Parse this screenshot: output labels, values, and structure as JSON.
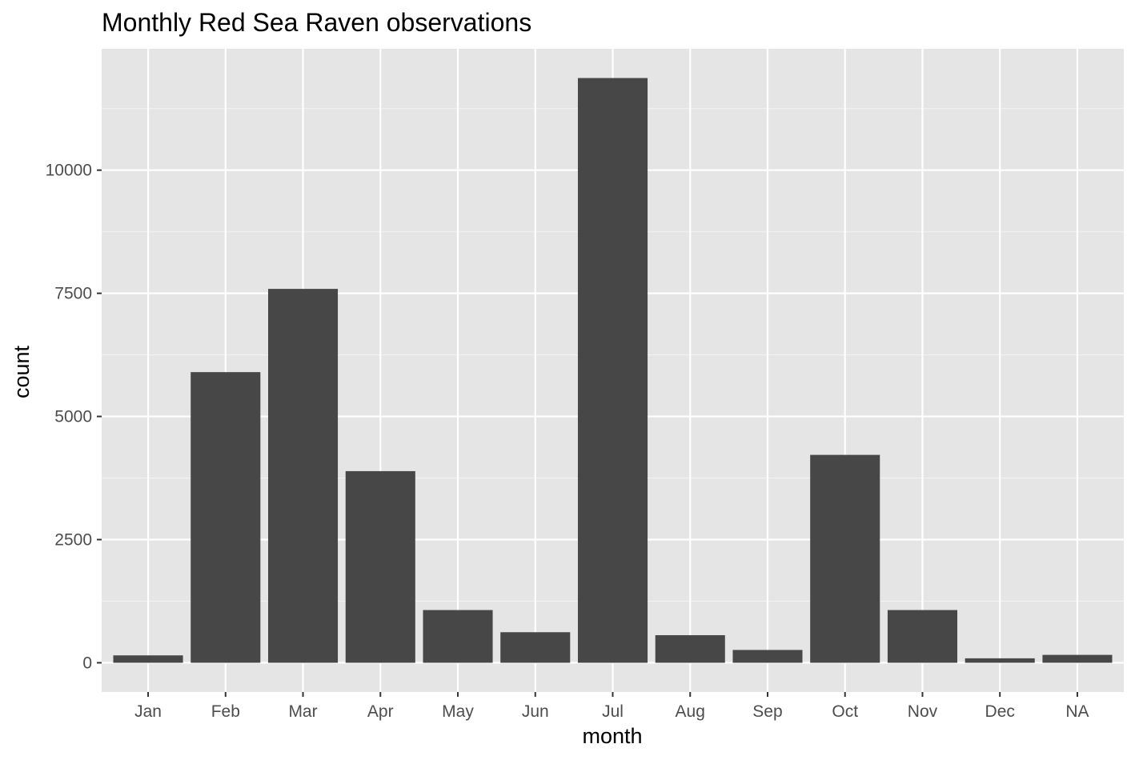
{
  "chart_data": {
    "type": "bar",
    "title": "Monthly Red Sea Raven observations",
    "xlabel": "month",
    "ylabel": "count",
    "categories": [
      "Jan",
      "Feb",
      "Mar",
      "Apr",
      "May",
      "Jun",
      "Jul",
      "Aug",
      "Sep",
      "Oct",
      "Nov",
      "Dec",
      "NA"
    ],
    "values": [
      150,
      5900,
      7590,
      3890,
      1070,
      620,
      11870,
      560,
      260,
      4220,
      1070,
      90,
      160
    ],
    "y_ticks": [
      0,
      2500,
      5000,
      7500,
      10000
    ],
    "y_tick_labels": [
      "0",
      "2500",
      "5000",
      "7500",
      "10000"
    ],
    "ylim": [
      -593.5,
      12463.5
    ],
    "grid": true,
    "legend": "none",
    "colors": {
      "panel_background": "#e5e5e5",
      "grid_major": "#ffffff",
      "grid_minor": "#f2f2f2",
      "bar_fill": "#474747",
      "tick_mark": "#333333",
      "tick_label": "#4d4d4d"
    }
  }
}
